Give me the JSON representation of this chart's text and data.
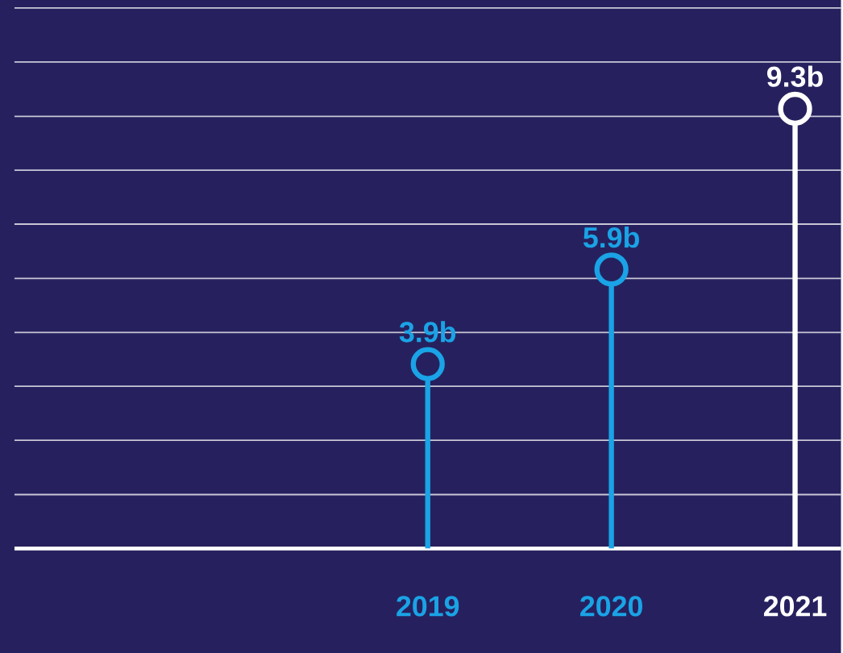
{
  "chart_data": {
    "type": "lollipop",
    "categories": [
      "2019",
      "2020",
      "2021"
    ],
    "values": [
      3.9,
      5.9,
      9.3
    ],
    "value_labels": [
      "3.9b",
      "5.9b",
      "9.3b"
    ],
    "colors": [
      "#1aa3e6",
      "#1aa3e6",
      "#ffffff"
    ],
    "ylim": [
      0,
      11.6
    ],
    "yticks": [
      {
        "value": 1.14,
        "label": null
      },
      {
        "value": 2.29,
        "label": null
      },
      {
        "value": 3.43,
        "label": null
      },
      {
        "value": 4.57,
        "label": null
      },
      {
        "value": 5.71,
        "label": null
      },
      {
        "value": 6.86,
        "label": null
      },
      {
        "value": 8.0,
        "label": null
      },
      {
        "value": 9.14,
        "label": null
      },
      {
        "value": 10.29,
        "label": null
      },
      {
        "value": 11.43,
        "label": null
      }
    ],
    "grid": "y",
    "tick_labels": "x",
    "marker": "circle"
  }
}
